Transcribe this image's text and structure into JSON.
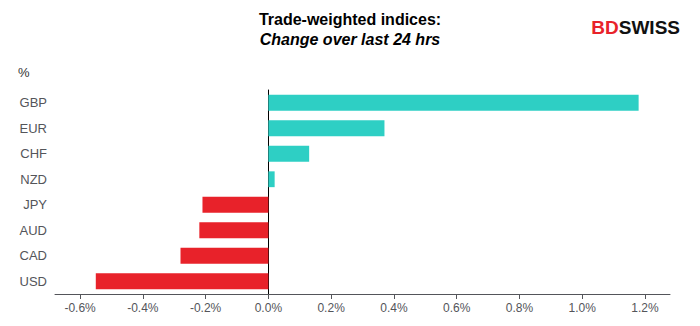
{
  "chart_data": {
    "type": "bar",
    "orientation": "horizontal",
    "title": "Trade-weighted indices:",
    "subtitle": "Change over last 24 hrs",
    "ylabel": "%",
    "categories": [
      "GBP",
      "EUR",
      "CHF",
      "NZD",
      "JPY",
      "AUD",
      "CAD",
      "USD"
    ],
    "values": [
      1.18,
      0.37,
      0.13,
      0.02,
      -0.21,
      -0.22,
      -0.28,
      -0.55
    ],
    "colors": [
      "#2ecfc4",
      "#2ecfc4",
      "#2ecfc4",
      "#2ecfc4",
      "#e8222a",
      "#e8222a",
      "#e8222a",
      "#e8222a"
    ],
    "xlim": [
      -0.68,
      1.28
    ],
    "xticks": [
      {
        "value": -0.6,
        "label": "-0.6%"
      },
      {
        "value": -0.4,
        "label": "-0.4%"
      },
      {
        "value": -0.2,
        "label": "-0.2%"
      },
      {
        "value": 0.0,
        "label": "0.0%"
      },
      {
        "value": 0.2,
        "label": "0.2%"
      },
      {
        "value": 0.4,
        "label": "0.4%"
      },
      {
        "value": 0.6,
        "label": "0.6%"
      },
      {
        "value": 0.8,
        "label": "0.8%"
      },
      {
        "value": 1.0,
        "label": "1.0%"
      },
      {
        "value": 1.2,
        "label": "1.2%"
      }
    ],
    "grid": false,
    "annotations": [
      {
        "text": "BD",
        "color": "#e8222a"
      },
      {
        "text": "SWISS",
        "color": "#111111"
      }
    ]
  }
}
